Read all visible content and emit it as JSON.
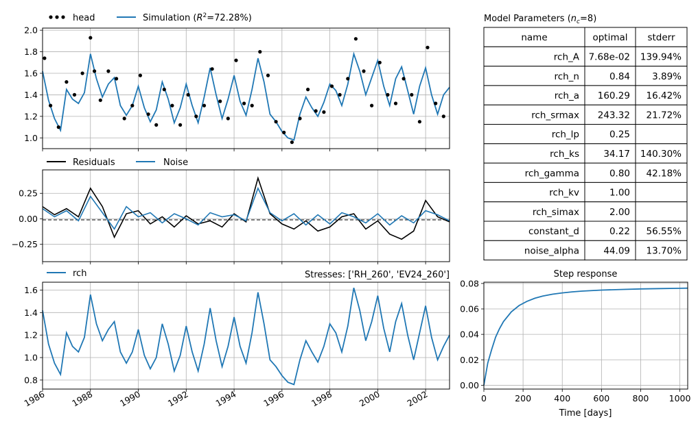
{
  "chart_data": [
    {
      "type": "line",
      "panel": "head",
      "legend": [
        {
          "name": "head",
          "style": "dots",
          "color": "#000000"
        },
        {
          "name": "Simulation",
          "r2_text": "72.28%",
          "style": "line",
          "color": "#1f77b4"
        }
      ],
      "legend_placement": "top-left, outside",
      "ylim": [
        0.9,
        2.02
      ],
      "yticks": [
        "1.0",
        "1.2",
        "1.4",
        "1.6",
        "1.8",
        "2.0"
      ],
      "x_range": [
        "1986-01-01",
        "2003-01-01"
      ],
      "grid": true,
      "series": [
        {
          "name": "Simulation",
          "color": "#1f77b4",
          "x": [
            "1986-01",
            "1986-04",
            "1986-07",
            "1986-10",
            "1987-01",
            "1987-04",
            "1987-07",
            "1987-10",
            "1988-01",
            "1988-04",
            "1988-07",
            "1988-10",
            "1989-01",
            "1989-04",
            "1989-07",
            "1989-10",
            "1990-01",
            "1990-04",
            "1990-07",
            "1990-10",
            "1991-01",
            "1991-04",
            "1991-07",
            "1991-10",
            "1992-01",
            "1992-04",
            "1992-07",
            "1992-10",
            "1993-01",
            "1993-04",
            "1993-07",
            "1993-10",
            "1994-01",
            "1994-04",
            "1994-07",
            "1994-10",
            "1995-01",
            "1995-04",
            "1995-07",
            "1995-10",
            "1996-01",
            "1996-04",
            "1996-07",
            "1996-10",
            "1997-01",
            "1997-04",
            "1997-07",
            "1997-10",
            "1998-01",
            "1998-04",
            "1998-07",
            "1998-10",
            "1999-01",
            "1999-04",
            "1999-07",
            "1999-10",
            "2000-01",
            "2000-04",
            "2000-07",
            "2000-10",
            "2001-01",
            "2001-04",
            "2001-07",
            "2001-10",
            "2002-01",
            "2002-04",
            "2002-07",
            "2002-10",
            "2003-01"
          ],
          "values": [
            1.62,
            1.35,
            1.18,
            1.07,
            1.45,
            1.36,
            1.32,
            1.42,
            1.78,
            1.55,
            1.38,
            1.5,
            1.56,
            1.3,
            1.21,
            1.3,
            1.48,
            1.28,
            1.15,
            1.26,
            1.52,
            1.36,
            1.14,
            1.28,
            1.5,
            1.3,
            1.14,
            1.38,
            1.65,
            1.4,
            1.18,
            1.36,
            1.58,
            1.34,
            1.21,
            1.45,
            1.74,
            1.52,
            1.22,
            1.15,
            1.06,
            1.0,
            0.98,
            1.22,
            1.38,
            1.28,
            1.2,
            1.33,
            1.5,
            1.44,
            1.3,
            1.5,
            1.78,
            1.62,
            1.4,
            1.56,
            1.72,
            1.48,
            1.3,
            1.55,
            1.66,
            1.44,
            1.22,
            1.48,
            1.65,
            1.4,
            1.22,
            1.4,
            1.47
          ]
        },
        {
          "name": "head",
          "color": "#000000",
          "x": [
            "1986-02",
            "1986-05",
            "1986-09",
            "1987-01",
            "1987-05",
            "1987-09",
            "1988-01",
            "1988-03",
            "1988-06",
            "1988-10",
            "1989-02",
            "1989-06",
            "1989-10",
            "1990-02",
            "1990-06",
            "1990-10",
            "1991-02",
            "1991-06",
            "1991-10",
            "1992-02",
            "1992-06",
            "1992-10",
            "1993-02",
            "1993-06",
            "1993-10",
            "1994-02",
            "1994-06",
            "1994-10",
            "1995-02",
            "1995-06",
            "1995-10",
            "1996-02",
            "1996-06",
            "1996-10",
            "1997-02",
            "1997-06",
            "1997-10",
            "1998-02",
            "1998-06",
            "1998-10",
            "1999-02",
            "1999-06",
            "1999-10",
            "2000-02",
            "2000-06",
            "2000-10",
            "2001-02",
            "2001-06",
            "2001-10",
            "2002-02",
            "2002-06",
            "2002-10"
          ],
          "values": [
            1.74,
            1.3,
            1.1,
            1.52,
            1.4,
            1.6,
            1.93,
            1.62,
            1.35,
            1.62,
            1.55,
            1.18,
            1.3,
            1.58,
            1.22,
            1.12,
            1.45,
            1.3,
            1.12,
            1.4,
            1.2,
            1.3,
            1.64,
            1.34,
            1.18,
            1.72,
            1.32,
            1.3,
            1.8,
            1.58,
            1.15,
            1.05,
            0.96,
            1.18,
            1.45,
            1.25,
            1.24,
            1.48,
            1.4,
            1.55,
            1.92,
            1.62,
            1.3,
            1.7,
            1.4,
            1.32,
            1.55,
            1.4,
            1.15,
            1.84,
            1.32,
            1.2
          ]
        }
      ]
    },
    {
      "type": "line",
      "panel": "residuals",
      "legend": [
        {
          "name": "Residuals",
          "color": "#000000"
        },
        {
          "name": "Noise",
          "color": "#1f77b4"
        }
      ],
      "legend_placement": "top-left, outside",
      "ylim": [
        -0.42,
        0.48
      ],
      "yticks": [
        "0.25",
        "0.00",
        "−0.25"
      ],
      "x_range": [
        "1986-01-01",
        "2003-01-01"
      ],
      "grid": true,
      "zero_line": "dashed",
      "series": [
        {
          "name": "Residuals",
          "color": "#000000",
          "x": [
            "1986-01",
            "1986-07",
            "1987-01",
            "1987-07",
            "1988-01",
            "1988-07",
            "1989-01",
            "1989-07",
            "1990-01",
            "1990-07",
            "1991-01",
            "1991-07",
            "1992-01",
            "1992-07",
            "1993-01",
            "1993-07",
            "1994-01",
            "1994-07",
            "1995-01",
            "1995-07",
            "1996-01",
            "1996-07",
            "1997-01",
            "1997-07",
            "1998-01",
            "1998-07",
            "1999-01",
            "1999-07",
            "2000-01",
            "2000-07",
            "2001-01",
            "2001-07",
            "2002-01",
            "2002-07",
            "2003-01"
          ],
          "values": [
            0.12,
            0.04,
            0.1,
            0.02,
            0.3,
            0.12,
            -0.18,
            0.05,
            0.08,
            -0.05,
            0.02,
            -0.08,
            0.03,
            -0.05,
            -0.02,
            -0.08,
            0.05,
            -0.03,
            0.4,
            0.05,
            -0.05,
            -0.1,
            -0.02,
            -0.12,
            -0.08,
            0.02,
            0.05,
            -0.1,
            -0.02,
            -0.15,
            -0.2,
            -0.12,
            0.18,
            0.02,
            -0.03
          ]
        },
        {
          "name": "Noise",
          "color": "#1f77b4",
          "x": [
            "1986-01",
            "1986-07",
            "1987-01",
            "1987-07",
            "1988-01",
            "1988-07",
            "1989-01",
            "1989-07",
            "1990-01",
            "1990-07",
            "1991-01",
            "1991-07",
            "1992-01",
            "1992-07",
            "1993-01",
            "1993-07",
            "1994-01",
            "1994-07",
            "1995-01",
            "1995-07",
            "1996-01",
            "1996-07",
            "1997-01",
            "1997-07",
            "1998-01",
            "1998-07",
            "1999-01",
            "1999-07",
            "2000-01",
            "2000-07",
            "2001-01",
            "2001-07",
            "2002-01",
            "2002-07",
            "2003-01"
          ],
          "values": [
            0.1,
            0.02,
            0.08,
            -0.02,
            0.22,
            0.06,
            -0.1,
            0.12,
            0.02,
            0.06,
            -0.04,
            0.05,
            0.0,
            -0.06,
            0.06,
            0.02,
            0.04,
            -0.02,
            0.3,
            0.06,
            -0.02,
            0.05,
            -0.06,
            0.04,
            -0.05,
            0.06,
            0.02,
            -0.04,
            0.05,
            -0.06,
            0.03,
            -0.04,
            0.08,
            0.04,
            -0.02
          ]
        }
      ]
    },
    {
      "type": "line",
      "panel": "contribution",
      "legend": [
        {
          "name": "rch",
          "color": "#1f77b4"
        }
      ],
      "legend_placement": "top-left, outside",
      "annotation": "Stresses: ['RH_260', 'EV24_260']",
      "ylim": [
        0.72,
        1.67
      ],
      "yticks": [
        "0.8",
        "1.0",
        "1.2",
        "1.4",
        "1.6"
      ],
      "xticks": [
        "1986",
        "1988",
        "1990",
        "1992",
        "1994",
        "1996",
        "1998",
        "2000",
        "2002"
      ],
      "x_range": [
        "1986-01-01",
        "2003-01-01"
      ],
      "grid": true,
      "series": [
        {
          "name": "rch",
          "color": "#1f77b4",
          "x": [
            "1986-01",
            "1986-04",
            "1986-07",
            "1986-10",
            "1987-01",
            "1987-04",
            "1987-07",
            "1987-10",
            "1988-01",
            "1988-04",
            "1988-07",
            "1988-10",
            "1989-01",
            "1989-04",
            "1989-07",
            "1989-10",
            "1990-01",
            "1990-04",
            "1990-07",
            "1990-10",
            "1991-01",
            "1991-04",
            "1991-07",
            "1991-10",
            "1992-01",
            "1992-04",
            "1992-07",
            "1992-10",
            "1993-01",
            "1993-04",
            "1993-07",
            "1993-10",
            "1994-01",
            "1994-04",
            "1994-07",
            "1994-10",
            "1995-01",
            "1995-04",
            "1995-07",
            "1995-10",
            "1996-01",
            "1996-04",
            "1996-07",
            "1996-10",
            "1997-01",
            "1997-04",
            "1997-07",
            "1997-10",
            "1998-01",
            "1998-04",
            "1998-07",
            "1998-10",
            "1999-01",
            "1999-04",
            "1999-07",
            "1999-10",
            "2000-01",
            "2000-04",
            "2000-07",
            "2000-10",
            "2001-01",
            "2001-04",
            "2001-07",
            "2001-10",
            "2002-01",
            "2002-04",
            "2002-07",
            "2002-10",
            "2003-01"
          ],
          "values": [
            1.42,
            1.12,
            0.95,
            0.85,
            1.22,
            1.1,
            1.05,
            1.18,
            1.56,
            1.3,
            1.15,
            1.25,
            1.32,
            1.05,
            0.95,
            1.05,
            1.25,
            1.02,
            0.9,
            1.0,
            1.3,
            1.12,
            0.88,
            1.02,
            1.28,
            1.05,
            0.88,
            1.12,
            1.44,
            1.15,
            0.92,
            1.1,
            1.36,
            1.1,
            0.95,
            1.22,
            1.58,
            1.3,
            0.98,
            0.92,
            0.84,
            0.78,
            0.76,
            0.98,
            1.15,
            1.05,
            0.96,
            1.1,
            1.3,
            1.22,
            1.05,
            1.28,
            1.62,
            1.42,
            1.15,
            1.32,
            1.55,
            1.26,
            1.05,
            1.32,
            1.48,
            1.2,
            0.98,
            1.22,
            1.46,
            1.18,
            0.98,
            1.1,
            1.2
          ]
        }
      ]
    },
    {
      "type": "line",
      "panel": "step_response",
      "title": "Step response",
      "xlabel": "Time [days]",
      "xlim": [
        0,
        1040
      ],
      "ylim": [
        -0.003,
        0.081
      ],
      "xticks": [
        "0",
        "200",
        "400",
        "600",
        "800",
        "1000"
      ],
      "yticks": [
        "0.00",
        "0.02",
        "0.04",
        "0.06",
        "0.08"
      ],
      "grid": true,
      "series": [
        {
          "name": "rch",
          "color": "#1f77b4",
          "x": [
            0,
            20,
            40,
            60,
            80,
            100,
            140,
            180,
            220,
            260,
            300,
            350,
            400,
            450,
            500,
            600,
            700,
            800,
            900,
            1000,
            1040
          ],
          "values": [
            0.0,
            0.0175,
            0.0282,
            0.0378,
            0.0445,
            0.0501,
            0.0577,
            0.0627,
            0.066,
            0.0684,
            0.0701,
            0.0716,
            0.0726,
            0.0734,
            0.074,
            0.0748,
            0.0753,
            0.0757,
            0.076,
            0.0762,
            0.0763
          ]
        }
      ]
    },
    {
      "type": "table",
      "panel": "parameters",
      "title": "Model Parameters",
      "title_nc": "8",
      "columns": [
        "name",
        "optimal",
        "stderr"
      ],
      "rows": [
        [
          "rch_A",
          "7.68e-02",
          "139.94%"
        ],
        [
          "rch_n",
          "0.84",
          "3.89%"
        ],
        [
          "rch_a",
          "160.29",
          "16.42%"
        ],
        [
          "rch_srmax",
          "243.32",
          "21.72%"
        ],
        [
          "rch_lp",
          "0.25",
          ""
        ],
        [
          "rch_ks",
          "34.17",
          "140.30%"
        ],
        [
          "rch_gamma",
          "0.80",
          "42.18%"
        ],
        [
          "rch_kv",
          "1.00",
          ""
        ],
        [
          "rch_simax",
          "2.00",
          ""
        ],
        [
          "constant_d",
          "0.22",
          "56.55%"
        ],
        [
          "noise_alpha",
          "44.09",
          "13.70%"
        ]
      ]
    }
  ],
  "colors": {
    "simulation": "#1f77b4",
    "observed": "#000000",
    "grid": "#b0b0b0"
  }
}
